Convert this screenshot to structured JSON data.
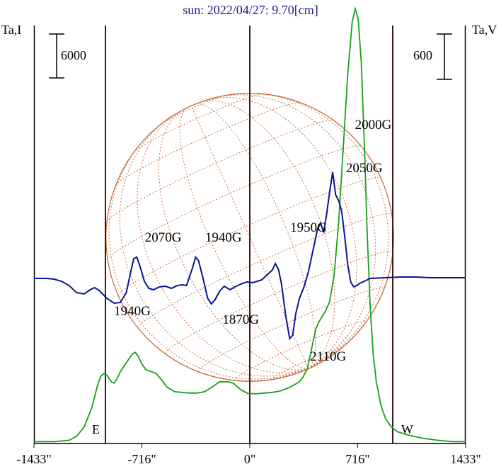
{
  "chart_data": {
    "type": "line",
    "title": "sun: 2022/04/27: 9.70[cm]",
    "left_axis_label": "Ta,I",
    "right_axis_label": "Ta,V",
    "left_scale_label": "6000",
    "right_scale_label": "600",
    "x_ticks": [
      "-1433\"",
      "-716\"",
      "0\"",
      "716\"",
      "1433\""
    ],
    "xlim": [
      -1433,
      1433
    ],
    "limb_labels": {
      "east": "E",
      "west": "W"
    },
    "solar_radius_arcsec": 955,
    "colors": {
      "stokes_i": "#1aa01a",
      "stokes_v": "#0a1490",
      "disk": "#c8642d",
      "axes": "#000000",
      "vertical_lines": "#3a1a1a",
      "title": "#1a1a8c"
    },
    "series": [
      {
        "key": "I",
        "points": [
          [
            -1433,
            -10
          ],
          [
            -1300,
            -10
          ],
          [
            -1200,
            -8
          ],
          [
            -1150,
            -2
          ],
          [
            -1100,
            12
          ],
          [
            -1050,
            40
          ],
          [
            -1010,
            75
          ],
          [
            -990,
            88
          ],
          [
            -970,
            92
          ],
          [
            -950,
            90
          ],
          [
            -920,
            80
          ],
          [
            -900,
            78
          ],
          [
            -880,
            85
          ],
          [
            -860,
            95
          ],
          [
            -830,
            105
          ],
          [
            -800,
            115
          ],
          [
            -780,
            122
          ],
          [
            -760,
            124
          ],
          [
            -740,
            118
          ],
          [
            -720,
            108
          ],
          [
            -690,
            98
          ],
          [
            -650,
            95
          ],
          [
            -620,
            92
          ],
          [
            -590,
            84
          ],
          [
            -550,
            72
          ],
          [
            -500,
            65
          ],
          [
            -450,
            64
          ],
          [
            -400,
            63
          ],
          [
            -350,
            63
          ],
          [
            -300,
            65
          ],
          [
            -250,
            72
          ],
          [
            -200,
            80
          ],
          [
            -150,
            80
          ],
          [
            -110,
            78
          ],
          [
            -60,
            68
          ],
          [
            -10,
            62
          ],
          [
            50,
            62
          ],
          [
            100,
            63
          ],
          [
            150,
            64
          ],
          [
            200,
            66
          ],
          [
            250,
            70
          ],
          [
            300,
            76
          ],
          [
            330,
            80
          ],
          [
            350,
            86
          ],
          [
            380,
            98
          ],
          [
            400,
            118
          ],
          [
            420,
            140
          ],
          [
            440,
            160
          ],
          [
            460,
            170
          ],
          [
            480,
            178
          ],
          [
            500,
            185
          ],
          [
            530,
            200
          ],
          [
            560,
            240
          ],
          [
            590,
            320
          ],
          [
            620,
            430
          ],
          [
            650,
            540
          ],
          [
            680,
            620
          ],
          [
            700,
            640
          ],
          [
            720,
            625
          ],
          [
            740,
            560
          ],
          [
            760,
            440
          ],
          [
            780,
            300
          ],
          [
            800,
            190
          ],
          [
            820,
            120
          ],
          [
            840,
            80
          ],
          [
            870,
            45
          ],
          [
            900,
            25
          ],
          [
            940,
            12
          ],
          [
            980,
            5
          ],
          [
            1050,
            0
          ],
          [
            1150,
            -5
          ],
          [
            1250,
            -8
          ],
          [
            1350,
            -10
          ],
          [
            1433,
            -10
          ]
        ]
      },
      {
        "key": "V",
        "points": [
          [
            -1433,
            0
          ],
          [
            -1350,
            0
          ],
          [
            -1300,
            -1
          ],
          [
            -1250,
            -4
          ],
          [
            -1200,
            -10
          ],
          [
            -1150,
            -20
          ],
          [
            -1100,
            -22
          ],
          [
            -1060,
            -16
          ],
          [
            -1030,
            -13
          ],
          [
            -1000,
            -17
          ],
          [
            -950,
            -28
          ],
          [
            -900,
            -35
          ],
          [
            -860,
            -34
          ],
          [
            -820,
            -20
          ],
          [
            -790,
            10
          ],
          [
            -770,
            28
          ],
          [
            -750,
            30
          ],
          [
            -730,
            18
          ],
          [
            -700,
            -4
          ],
          [
            -670,
            -14
          ],
          [
            -640,
            -16
          ],
          [
            -600,
            -12
          ],
          [
            -560,
            -11
          ],
          [
            -520,
            -14
          ],
          [
            -480,
            -10
          ],
          [
            -450,
            -9
          ],
          [
            -420,
            -10
          ],
          [
            -380,
            15
          ],
          [
            -360,
            30
          ],
          [
            -340,
            25
          ],
          [
            -310,
            0
          ],
          [
            -280,
            -28
          ],
          [
            -255,
            -36
          ],
          [
            -230,
            -30
          ],
          [
            -200,
            -18
          ],
          [
            -170,
            -11
          ],
          [
            -130,
            -16
          ],
          [
            -100,
            -12
          ],
          [
            -60,
            -8
          ],
          [
            -20,
            -5
          ],
          [
            20,
            -6
          ],
          [
            80,
            -2
          ],
          [
            120,
            6
          ],
          [
            150,
            12
          ],
          [
            170,
            21
          ],
          [
            190,
            13
          ],
          [
            210,
            -7
          ],
          [
            240,
            -55
          ],
          [
            265,
            -85
          ],
          [
            285,
            -80
          ],
          [
            305,
            -50
          ],
          [
            330,
            -28
          ],
          [
            360,
            -12
          ],
          [
            390,
            10
          ],
          [
            420,
            40
          ],
          [
            450,
            70
          ],
          [
            470,
            78
          ],
          [
            490,
            65
          ],
          [
            510,
            90
          ],
          [
            530,
            122
          ],
          [
            550,
            150
          ],
          [
            570,
            118
          ],
          [
            590,
            110
          ],
          [
            610,
            95
          ],
          [
            630,
            60
          ],
          [
            650,
            20
          ],
          [
            670,
            -5
          ],
          [
            690,
            -12
          ],
          [
            710,
            -10
          ],
          [
            730,
            -7
          ],
          [
            760,
            -4
          ],
          [
            800,
            0
          ],
          [
            900,
            1
          ],
          [
            1000,
            2
          ],
          [
            1100,
            2
          ],
          [
            1200,
            1
          ],
          [
            1300,
            1
          ],
          [
            1433,
            1
          ]
        ]
      }
    ],
    "annotations": [
      {
        "text": "2070G",
        "x": -575,
        "y": 52
      },
      {
        "text": "1940G",
        "x": -175,
        "y": 52
      },
      {
        "text": "1950G",
        "x": 390,
        "y": 66
      },
      {
        "text": "2050G",
        "x": 760,
        "y": 150
      },
      {
        "text": "2000G",
        "x": 820,
        "y": 211
      },
      {
        "text": "1940G",
        "x": -780,
        "y": -52
      },
      {
        "text": "1870G",
        "x": -60,
        "y": -64
      },
      {
        "text": "2110G",
        "x": 520,
        "y": -116
      }
    ]
  }
}
